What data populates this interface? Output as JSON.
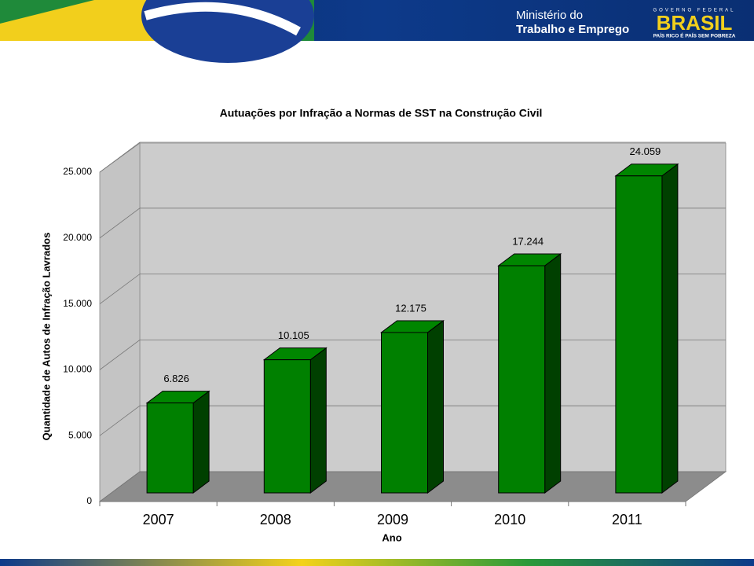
{
  "header": {
    "ministry_line1": "Ministério do",
    "ministry_line2": "Trabalho e Emprego",
    "government": "GOVERNO FEDERAL",
    "brand": "BRASIL",
    "slogan": "PAÍS RICO É PAÍS SEM POBREZA"
  },
  "chart_data": {
    "type": "bar3d",
    "title": "Autuações por Infração a Normas de SST na Construção Civil",
    "y_label": "Quantidade de Autos de Infração Lavrados",
    "x_label": "Ano",
    "categories": [
      "2007",
      "2008",
      "2009",
      "2010",
      "2011"
    ],
    "values": [
      6826,
      10105,
      12175,
      17244,
      24059
    ],
    "value_labels": [
      "6.826",
      "10.105",
      "12.175",
      "17.244",
      "24.059"
    ],
    "color": "#008000",
    "ylim": [
      0,
      25000
    ],
    "yticks": [
      0,
      {
        "value": 5000,
        "label": "5.000"
      },
      {
        "value": 10000,
        "label": "10.000"
      },
      {
        "value": 15000,
        "label": "15.000"
      },
      {
        "value": 20000,
        "label": "20.000"
      },
      {
        "value": 25000,
        "label": "25.000"
      }
    ],
    "grid": true
  }
}
